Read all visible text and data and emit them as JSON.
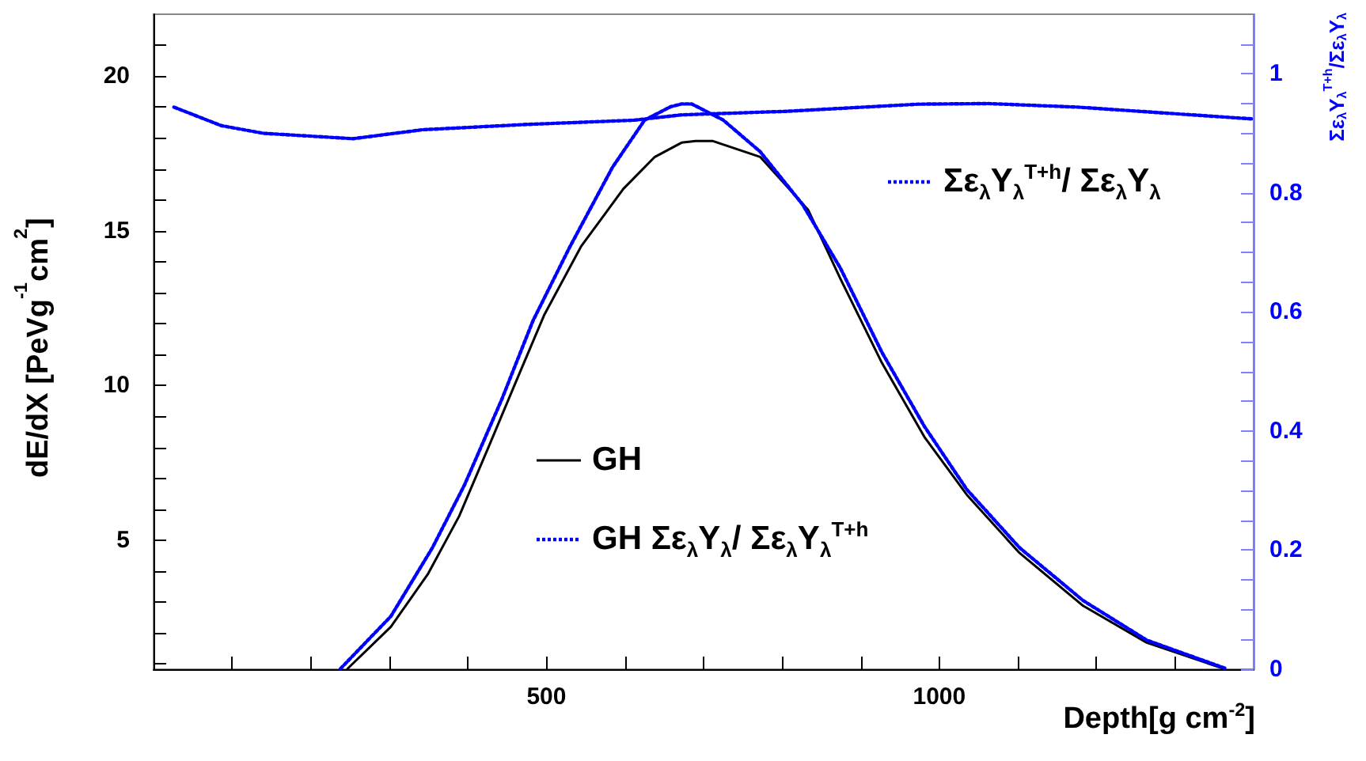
{
  "chart_data": {
    "type": "line",
    "xlabel": "Depth[g cm$^{-2}$]",
    "ylabel": "dE/dX [PeVg$^{-1}$cm$^{2}$]",
    "y2label": "Σε$_{λ}$Y$_{λ}$$^{T+h}$/Σε$_{λ}$Y$_{λ}$",
    "xlim": [
      0,
      1400
    ],
    "ylim": [
      0.83,
      22
    ],
    "y2lim": [
      0,
      1.1
    ],
    "xticks": [
      {
        "value": 100,
        "label": null
      },
      {
        "value": 200,
        "label": null
      },
      {
        "value": 300,
        "label": null
      },
      {
        "value": 400,
        "label": null
      },
      500,
      {
        "value": 600,
        "label": null
      },
      {
        "value": 700,
        "label": null
      },
      {
        "value": 800,
        "label": null
      },
      {
        "value": 900,
        "label": null
      },
      1000,
      {
        "value": 1100,
        "label": null
      },
      {
        "value": 1200,
        "label": null
      },
      {
        "value": 1300,
        "label": null
      }
    ],
    "yticks": [
      {
        "value": 1,
        "label": null
      },
      {
        "value": 2,
        "label": null
      },
      {
        "value": 3,
        "label": null
      },
      {
        "value": 4,
        "label": null
      },
      5,
      {
        "value": 6,
        "label": null
      },
      {
        "value": 7,
        "label": null
      },
      {
        "value": 8,
        "label": null
      },
      {
        "value": 9,
        "label": null
      },
      10,
      {
        "value": 11,
        "label": null
      },
      {
        "value": 12,
        "label": null
      },
      {
        "value": 13,
        "label": null
      },
      {
        "value": 14,
        "label": null
      },
      15,
      {
        "value": 16,
        "label": null
      },
      {
        "value": 17,
        "label": null
      },
      {
        "value": 18,
        "label": null
      },
      {
        "value": 19,
        "label": null
      },
      20,
      {
        "value": 21,
        "label": null
      }
    ],
    "y2ticks": [
      0,
      {
        "value": 0.05,
        "label": null
      },
      {
        "value": 0.1,
        "label": null
      },
      {
        "value": 0.15,
        "label": null
      },
      0.2,
      {
        "value": 0.25,
        "label": null
      },
      {
        "value": 0.3,
        "label": null
      },
      {
        "value": 0.35,
        "label": null
      },
      0.4,
      {
        "value": 0.45,
        "label": null
      },
      {
        "value": 0.5,
        "label": null
      },
      {
        "value": 0.55,
        "label": null
      },
      0.6,
      {
        "value": 0.65,
        "label": null
      },
      {
        "value": 0.7,
        "label": null
      },
      {
        "value": 0.75,
        "label": null
      },
      0.8,
      {
        "value": 0.85,
        "label": null
      },
      {
        "value": 0.9,
        "label": null
      },
      {
        "value": 0.95,
        "label": null
      },
      1,
      {
        "value": 1.05,
        "label": null
      }
    ],
    "grid": false,
    "legend": "center",
    "marker": "none",
    "series": [
      {
        "name": "GH",
        "color": "#000000",
        "line_style": "solid",
        "x": [
          247,
          302,
          349,
          389,
          429,
          460,
          497,
          544,
          598,
          638,
          672,
          690,
          712,
          772,
          833,
          874,
          927,
          981,
          1035,
          1102,
          1183,
          1264,
          1344,
          1362
        ],
        "values": [
          0.85,
          2.2,
          3.9,
          5.78,
          8.17,
          10.05,
          12.27,
          14.49,
          16.36,
          17.39,
          17.85,
          17.9,
          17.9,
          17.39,
          15.68,
          13.46,
          10.73,
          8.34,
          6.47,
          4.59,
          2.88,
          1.69,
          1.0,
          0.85
        ]
      },
      {
        "name": "GH Σε$_{λ}$Y$_{λ}$/ Σε$_{λ}$Y$_{λ}$$^{T+h}$",
        "color": "#0000ff",
        "line_style": "dotted",
        "x": [
          238,
          302,
          355,
          396,
          443,
          483,
          530,
          584,
          625,
          658,
          672,
          685,
          725,
          772,
          826,
          874,
          927,
          981,
          1035,
          1102,
          1183,
          1264,
          1344,
          1365
        ],
        "values": [
          0.85,
          2.54,
          4.76,
          6.8,
          9.54,
          12.1,
          14.49,
          17.05,
          18.58,
          19.01,
          19.1,
          19.1,
          18.58,
          17.56,
          15.85,
          13.8,
          11.07,
          8.68,
          6.64,
          4.76,
          3.05,
          1.77,
          1.04,
          0.85
        ]
      },
      {
        "name": "Σε$_{λ}$Y$_{λ}$$^{T+h}$/ Σε$_{λ}$Y$_{λ}$",
        "color": "#0000ff",
        "line_style": "dotted",
        "axis": "y2",
        "x": [
          26,
          86,
          140,
          254,
          342,
          476,
          611,
          672,
          806,
          974,
          1062,
          1176,
          1400
        ],
        "values": [
          0.944,
          0.913,
          0.9,
          0.891,
          0.906,
          0.915,
          0.922,
          0.931,
          0.937,
          0.949,
          0.95,
          0.944,
          0.924
        ]
      }
    ]
  }
}
